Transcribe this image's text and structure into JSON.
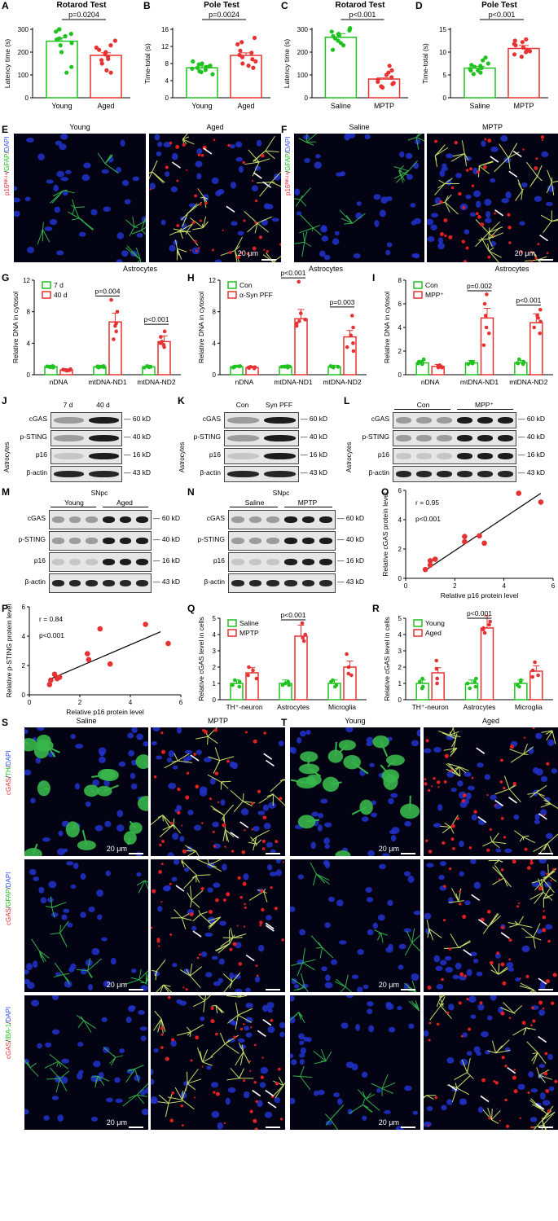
{
  "colors": {
    "green": "#1fc21f",
    "red": "#e63232",
    "blue": "#3050ff"
  },
  "bar_charts": [
    {
      "id": "A",
      "title": "Rotarod Test",
      "ylabel": "Latency time (s)",
      "categories": [
        "Young",
        "Aged"
      ],
      "colors": [
        "#1fc21f",
        "#e63232"
      ],
      "values": [
        248,
        186
      ],
      "ylim": [
        0,
        300
      ],
      "ticks": [
        "0",
        "100",
        "200",
        "300"
      ],
      "sig": "p=0.0204",
      "points": [
        [
          290,
          280,
          300,
          270,
          255,
          240,
          230,
          260,
          200,
          135,
          110,
          300
        ],
        [
          220,
          230,
          180,
          170,
          150,
          200,
          165,
          210,
          190,
          120,
          110,
          250
        ]
      ]
    },
    {
      "id": "B",
      "title": "Pole Test",
      "ylabel": "Time-total (s)",
      "categories": [
        "Young",
        "Aged"
      ],
      "colors": [
        "#1fc21f",
        "#e63232"
      ],
      "values": [
        7.0,
        9.9
      ],
      "ylim": [
        0,
        16
      ],
      "ticks": [
        "0",
        "4",
        "8",
        "12",
        "16"
      ],
      "sig": "p=0.0024",
      "points": [
        [
          8.5,
          8.0,
          7.5,
          7.0,
          7.2,
          6.5,
          6.0,
          5.5,
          7.8,
          6.8,
          7.3,
          6.2
        ],
        [
          14.0,
          13.0,
          12.5,
          11.0,
          10.5,
          10.0,
          9.5,
          9.0,
          8.0,
          7.5,
          7.0,
          8.5
        ]
      ]
    },
    {
      "id": "C",
      "title": "Rotarod Test",
      "ylabel": "Latency time (s)",
      "categories": [
        "Saline",
        "MPTP"
      ],
      "colors": [
        "#1fc21f",
        "#e63232"
      ],
      "values": [
        265,
        82
      ],
      "ylim": [
        0,
        300
      ],
      "ticks": [
        "0",
        "100",
        "200",
        "300"
      ],
      "sig": "p<0.001",
      "points": [
        [
          300,
          290,
          280,
          295,
          270,
          250,
          240,
          230,
          260,
          210,
          305,
          275
        ],
        [
          140,
          120,
          100,
          90,
          70,
          60,
          50,
          45,
          80,
          110,
          65
        ]
      ]
    },
    {
      "id": "D",
      "title": "Pole Test",
      "ylabel": "Time-total (s)",
      "categories": [
        "Saline",
        "MPTP"
      ],
      "colors": [
        "#1fc21f",
        "#e63232"
      ],
      "values": [
        6.5,
        10.8
      ],
      "ylim": [
        0,
        15
      ],
      "ticks": [
        "0",
        "5",
        "10",
        "15"
      ],
      "sig": "p<0.001",
      "points": [
        [
          8.8,
          8.2,
          7.5,
          7.0,
          6.5,
          6.0,
          5.5,
          6.8,
          7.2,
          5.2,
          6.3,
          6.0
        ],
        [
          12.8,
          12.2,
          11.5,
          11.0,
          10.5,
          10.0,
          9.0,
          11.8,
          12.5,
          10.2,
          9.5
        ]
      ]
    }
  ],
  "group_charts": [
    {
      "id": "G",
      "title": "Astrocytes",
      "ylabel": "Relative DNA in cytosol",
      "legend": [
        "7 d",
        "40 d"
      ],
      "groups": [
        "nDNA",
        "mtDNA-ND1",
        "mtDNA-ND2"
      ],
      "values": [
        [
          1.0,
          0.6
        ],
        [
          1.0,
          6.7
        ],
        [
          1.0,
          4.2
        ]
      ],
      "ylim": [
        0,
        12
      ],
      "ticks": [
        "0",
        "4",
        "8",
        "12"
      ],
      "sigs": [
        {
          "group": 1,
          "text": "p=0.004",
          "y": 10.0
        },
        {
          "group": 2,
          "text": "p<0.001",
          "y": 6.4
        }
      ],
      "points": [
        [
          [
            1.1,
            1.0,
            0.9,
            1.0,
            1.05,
            0.95
          ],
          [
            0.5,
            0.6,
            0.7,
            0.55,
            0.65,
            0.6
          ]
        ],
        [
          [
            1.0,
            1.1,
            0.9,
            1.0,
            1.05,
            0.95
          ],
          [
            9.5,
            8.0,
            6.5,
            5.5,
            4.5,
            6.2
          ]
        ],
        [
          [
            1.0,
            1.1,
            0.9,
            1.0,
            1.05,
            0.95
          ],
          [
            5.5,
            4.8,
            4.2,
            3.8,
            3.5,
            4.0
          ]
        ]
      ]
    },
    {
      "id": "H",
      "title": "Astrocytes",
      "ylabel": "Relative DNA in cytosol",
      "legend": [
        "Con",
        "α-Syn PFF"
      ],
      "groups": [
        "nDNA",
        "mtDNA-ND1",
        "mtDNA-ND2"
      ],
      "values": [
        [
          1.0,
          0.9
        ],
        [
          1.0,
          7.1
        ],
        [
          1.0,
          4.8
        ]
      ],
      "ylim": [
        0,
        12
      ],
      "ticks": [
        "0",
        "4",
        "8",
        "12"
      ],
      "sigs": [
        {
          "group": 1,
          "text": "p<0.001",
          "y": 12.3
        },
        {
          "group": 2,
          "text": "p=0.003",
          "y": 8.6
        }
      ],
      "points": [
        [
          [
            1.1,
            1.0,
            0.9,
            1.0,
            1.05,
            0.95
          ],
          [
            0.8,
            0.9,
            1.0,
            0.85,
            0.95,
            0.9
          ]
        ],
        [
          [
            1.0,
            1.1,
            0.9,
            1.0,
            1.05,
            0.95
          ],
          [
            11.8,
            7.8,
            7.0,
            6.5,
            6.2,
            6.8
          ]
        ],
        [
          [
            1.0,
            1.1,
            0.9,
            1.0,
            1.05,
            0.95
          ],
          [
            7.5,
            6.0,
            5.0,
            4.0,
            3.5,
            3.0
          ]
        ]
      ]
    },
    {
      "id": "I",
      "title": "Astrocytes",
      "ylabel": "Relative DNA in cytosol",
      "legend": [
        "Con",
        "MPP⁺"
      ],
      "groups": [
        "nDNA",
        "mtDNA-ND1",
        "mtDNA-ND2"
      ],
      "values": [
        [
          1.0,
          0.7
        ],
        [
          1.0,
          4.8
        ],
        [
          1.0,
          4.4
        ]
      ],
      "ylim": [
        0,
        8
      ],
      "ticks": [
        "0",
        "2",
        "4",
        "6",
        "8"
      ],
      "sigs": [
        {
          "group": 1,
          "text": "p=0.002",
          "y": 7.1
        },
        {
          "group": 2,
          "text": "p<0.001",
          "y": 5.9
        }
      ],
      "points": [
        [
          [
            1.1,
            1.0,
            0.9,
            1.3,
            1.05,
            0.95
          ],
          [
            0.6,
            0.7,
            0.8,
            0.65,
            0.75,
            0.6
          ]
        ],
        [
          [
            1.0,
            1.1,
            0.9,
            1.0,
            1.05,
            0.95
          ],
          [
            6.8,
            6.0,
            5.0,
            4.0,
            3.5,
            2.5
          ]
        ],
        [
          [
            1.0,
            1.1,
            0.9,
            1.3,
            1.05,
            0.95
          ],
          [
            5.5,
            5.0,
            4.5,
            4.0,
            3.5,
            4.8
          ]
        ]
      ]
    },
    {
      "id": "Q",
      "title": "",
      "ylabel": "Relative cGAS level in cells",
      "legend": [
        "Saline",
        "MPTP"
      ],
      "groups": [
        "TH⁺-neuron",
        "Astrocytes",
        "Microglia"
      ],
      "values": [
        [
          1.0,
          1.65
        ],
        [
          1.0,
          3.9
        ],
        [
          1.0,
          2.0
        ]
      ],
      "ylim": [
        0,
        5
      ],
      "ticks": [
        "0",
        "1",
        "2",
        "3",
        "4",
        "5"
      ],
      "sigs": [
        {
          "group": 1,
          "text": "p<0.001",
          "y": 4.9
        }
      ],
      "points": [
        [
          [
            1.2,
            0.8,
            1.1,
            0.9
          ],
          [
            2.0,
            1.8,
            1.5,
            1.3
          ]
        ],
        [
          [
            1.1,
            0.9,
            1.0,
            0.9
          ],
          [
            4.7,
            4.0,
            3.8,
            3.6
          ]
        ],
        [
          [
            1.2,
            0.8,
            1.1,
            0.9
          ],
          [
            2.8,
            2.0,
            1.6,
            1.5
          ]
        ]
      ]
    },
    {
      "id": "R",
      "title": "",
      "ylabel": "Relative cGAS level in cells",
      "legend": [
        "Young",
        "Aged"
      ],
      "groups": [
        "TH⁺-neuron",
        "Astrocytes",
        "Microglia"
      ],
      "values": [
        [
          1.0,
          1.65
        ],
        [
          1.0,
          4.4
        ],
        [
          1.0,
          1.75
        ]
      ],
      "ylim": [
        0,
        5
      ],
      "ticks": [
        "0",
        "1",
        "2",
        "3",
        "4",
        "5"
      ],
      "sigs": [
        {
          "group": 1,
          "text": "p<0.001",
          "y": 5.0
        }
      ],
      "points": [
        [
          [
            1.3,
            0.8,
            1.1,
            0.7
          ],
          [
            2.4,
            1.9,
            1.3,
            1.0
          ]
        ],
        [
          [
            1.3,
            0.8,
            1.1,
            0.7,
            1.0
          ],
          [
            4.8,
            4.6,
            4.3,
            4.1,
            4.4
          ]
        ],
        [
          [
            1.2,
            0.8,
            1.1,
            0.9
          ],
          [
            2.3,
            1.8,
            1.5,
            1.4
          ]
        ]
      ]
    }
  ],
  "scatter_charts": [
    {
      "id": "O",
      "xlabel": "Relative p16 protein level",
      "ylabel": "Relative cGAS protein level",
      "r_text": "r = 0.95",
      "p_text": "p<0.001",
      "xlim": [
        0,
        6
      ],
      "ylim": [
        0,
        6
      ],
      "xticks": [
        "0",
        "2",
        "4",
        "6"
      ],
      "yticks": [
        "0",
        "2",
        "4",
        "6"
      ],
      "points": [
        [
          0.8,
          0.6
        ],
        [
          1.0,
          0.9
        ],
        [
          1.0,
          1.2
        ],
        [
          1.2,
          1.3
        ],
        [
          2.4,
          2.5
        ],
        [
          2.4,
          2.85
        ],
        [
          3.0,
          2.9
        ],
        [
          3.2,
          2.4
        ],
        [
          4.6,
          5.8
        ],
        [
          5.5,
          5.2
        ]
      ],
      "fit": [
        [
          0.8,
          0.55
        ],
        [
          5.5,
          5.8
        ]
      ]
    },
    {
      "id": "P",
      "xlabel": "Relative p16 protein level",
      "ylabel": "Relative p-STING protein level",
      "r_text": "r = 0.84",
      "p_text": "p<0.001",
      "xlim": [
        0,
        6
      ],
      "ylim": [
        0,
        6
      ],
      "xticks": [
        "0",
        "2",
        "4",
        "6"
      ],
      "yticks": [
        "0",
        "2",
        "4",
        "6"
      ],
      "points": [
        [
          0.8,
          0.7
        ],
        [
          0.85,
          1.0
        ],
        [
          1.0,
          1.4
        ],
        [
          1.1,
          1.1
        ],
        [
          1.2,
          1.2
        ],
        [
          2.3,
          2.8
        ],
        [
          2.35,
          2.4
        ],
        [
          2.8,
          4.5
        ],
        [
          3.2,
          2.1
        ],
        [
          4.6,
          4.8
        ],
        [
          5.5,
          3.5
        ]
      ],
      "fit": [
        [
          0.8,
          1.05
        ],
        [
          5.2,
          4.3
        ]
      ]
    }
  ],
  "micro": {
    "E": {
      "ylabel_red": "p16ᴵᴺᴷ⁴ᵃ",
      "ylabel_sep1": "/",
      "ylabel_green": "GFAP",
      "ylabel_sep2": "/",
      "ylabel_blue": "DAPI",
      "left": "Young",
      "right": "Aged",
      "scale": "20 μm"
    },
    "F": {
      "ylabel_red": "p16ᴵᴺᴷ⁴ᵃ",
      "ylabel_sep1": "/",
      "ylabel_green": "GFAP",
      "ylabel_sep2": "/",
      "ylabel_blue": "DAPI",
      "left": "Saline",
      "right": "MPTP",
      "scale": "20 μm"
    },
    "S": {
      "cols": [
        "Saline",
        "MPTP"
      ],
      "rows": [
        {
          "red": "cGAS",
          "sep": "/",
          "green": "TH",
          "sep2": "/",
          "blue": "DAPI"
        },
        {
          "red": "cGAS",
          "sep": "/",
          "green": "GFAP",
          "sep2": "/",
          "blue": "DAPI"
        },
        {
          "red": "cGAS",
          "sep": "/",
          "green": "IBA-1",
          "sep2": "/",
          "blue": "DAPI"
        }
      ],
      "scale": "20 μm"
    },
    "T": {
      "cols": [
        "Young",
        "Aged"
      ],
      "scale": "20 μm"
    }
  },
  "blots": {
    "J": {
      "ylabel": "Astrocytes",
      "cols": [
        "7 d",
        "40 d"
      ],
      "rows": [
        "cGAS",
        "p-STING",
        "p16",
        "β-actin"
      ],
      "kd": [
        "60 kD",
        "40 kD",
        "16 kD",
        "43 kD"
      ]
    },
    "K": {
      "ylabel": "Astrocytes",
      "cols": [
        "Con",
        "Syn PFF"
      ],
      "rows": [
        "cGAS",
        "p-STING",
        "p16",
        "β-actin"
      ],
      "kd": [
        "60 kD",
        "40 kD",
        "16 kD",
        "43 kD"
      ]
    },
    "L": {
      "ylabel": "Astrocytes",
      "cols": [
        "Con",
        "MPP⁺"
      ],
      "rows": [
        "cGAS",
        "p-STING",
        "p16",
        "β-actin"
      ],
      "kd": [
        "60 kD",
        "40 kD",
        "16 kD",
        "43 kD"
      ]
    },
    "M": {
      "header": "SNpc",
      "cols": [
        "Young",
        "Aged"
      ],
      "rows": [
        "cGAS",
        "p-STING",
        "p16",
        "β-actin"
      ],
      "kd": [
        "60 kD",
        "40 kD",
        "16 kD",
        "43 kD"
      ]
    },
    "N": {
      "header": "SNpc",
      "cols": [
        "Saline",
        "MPTP"
      ],
      "rows": [
        "cGAS",
        "p-STING",
        "p16",
        "β-actin"
      ],
      "kd": [
        "60 kD",
        "40 kD",
        "16 kD",
        "43 kD"
      ]
    }
  }
}
